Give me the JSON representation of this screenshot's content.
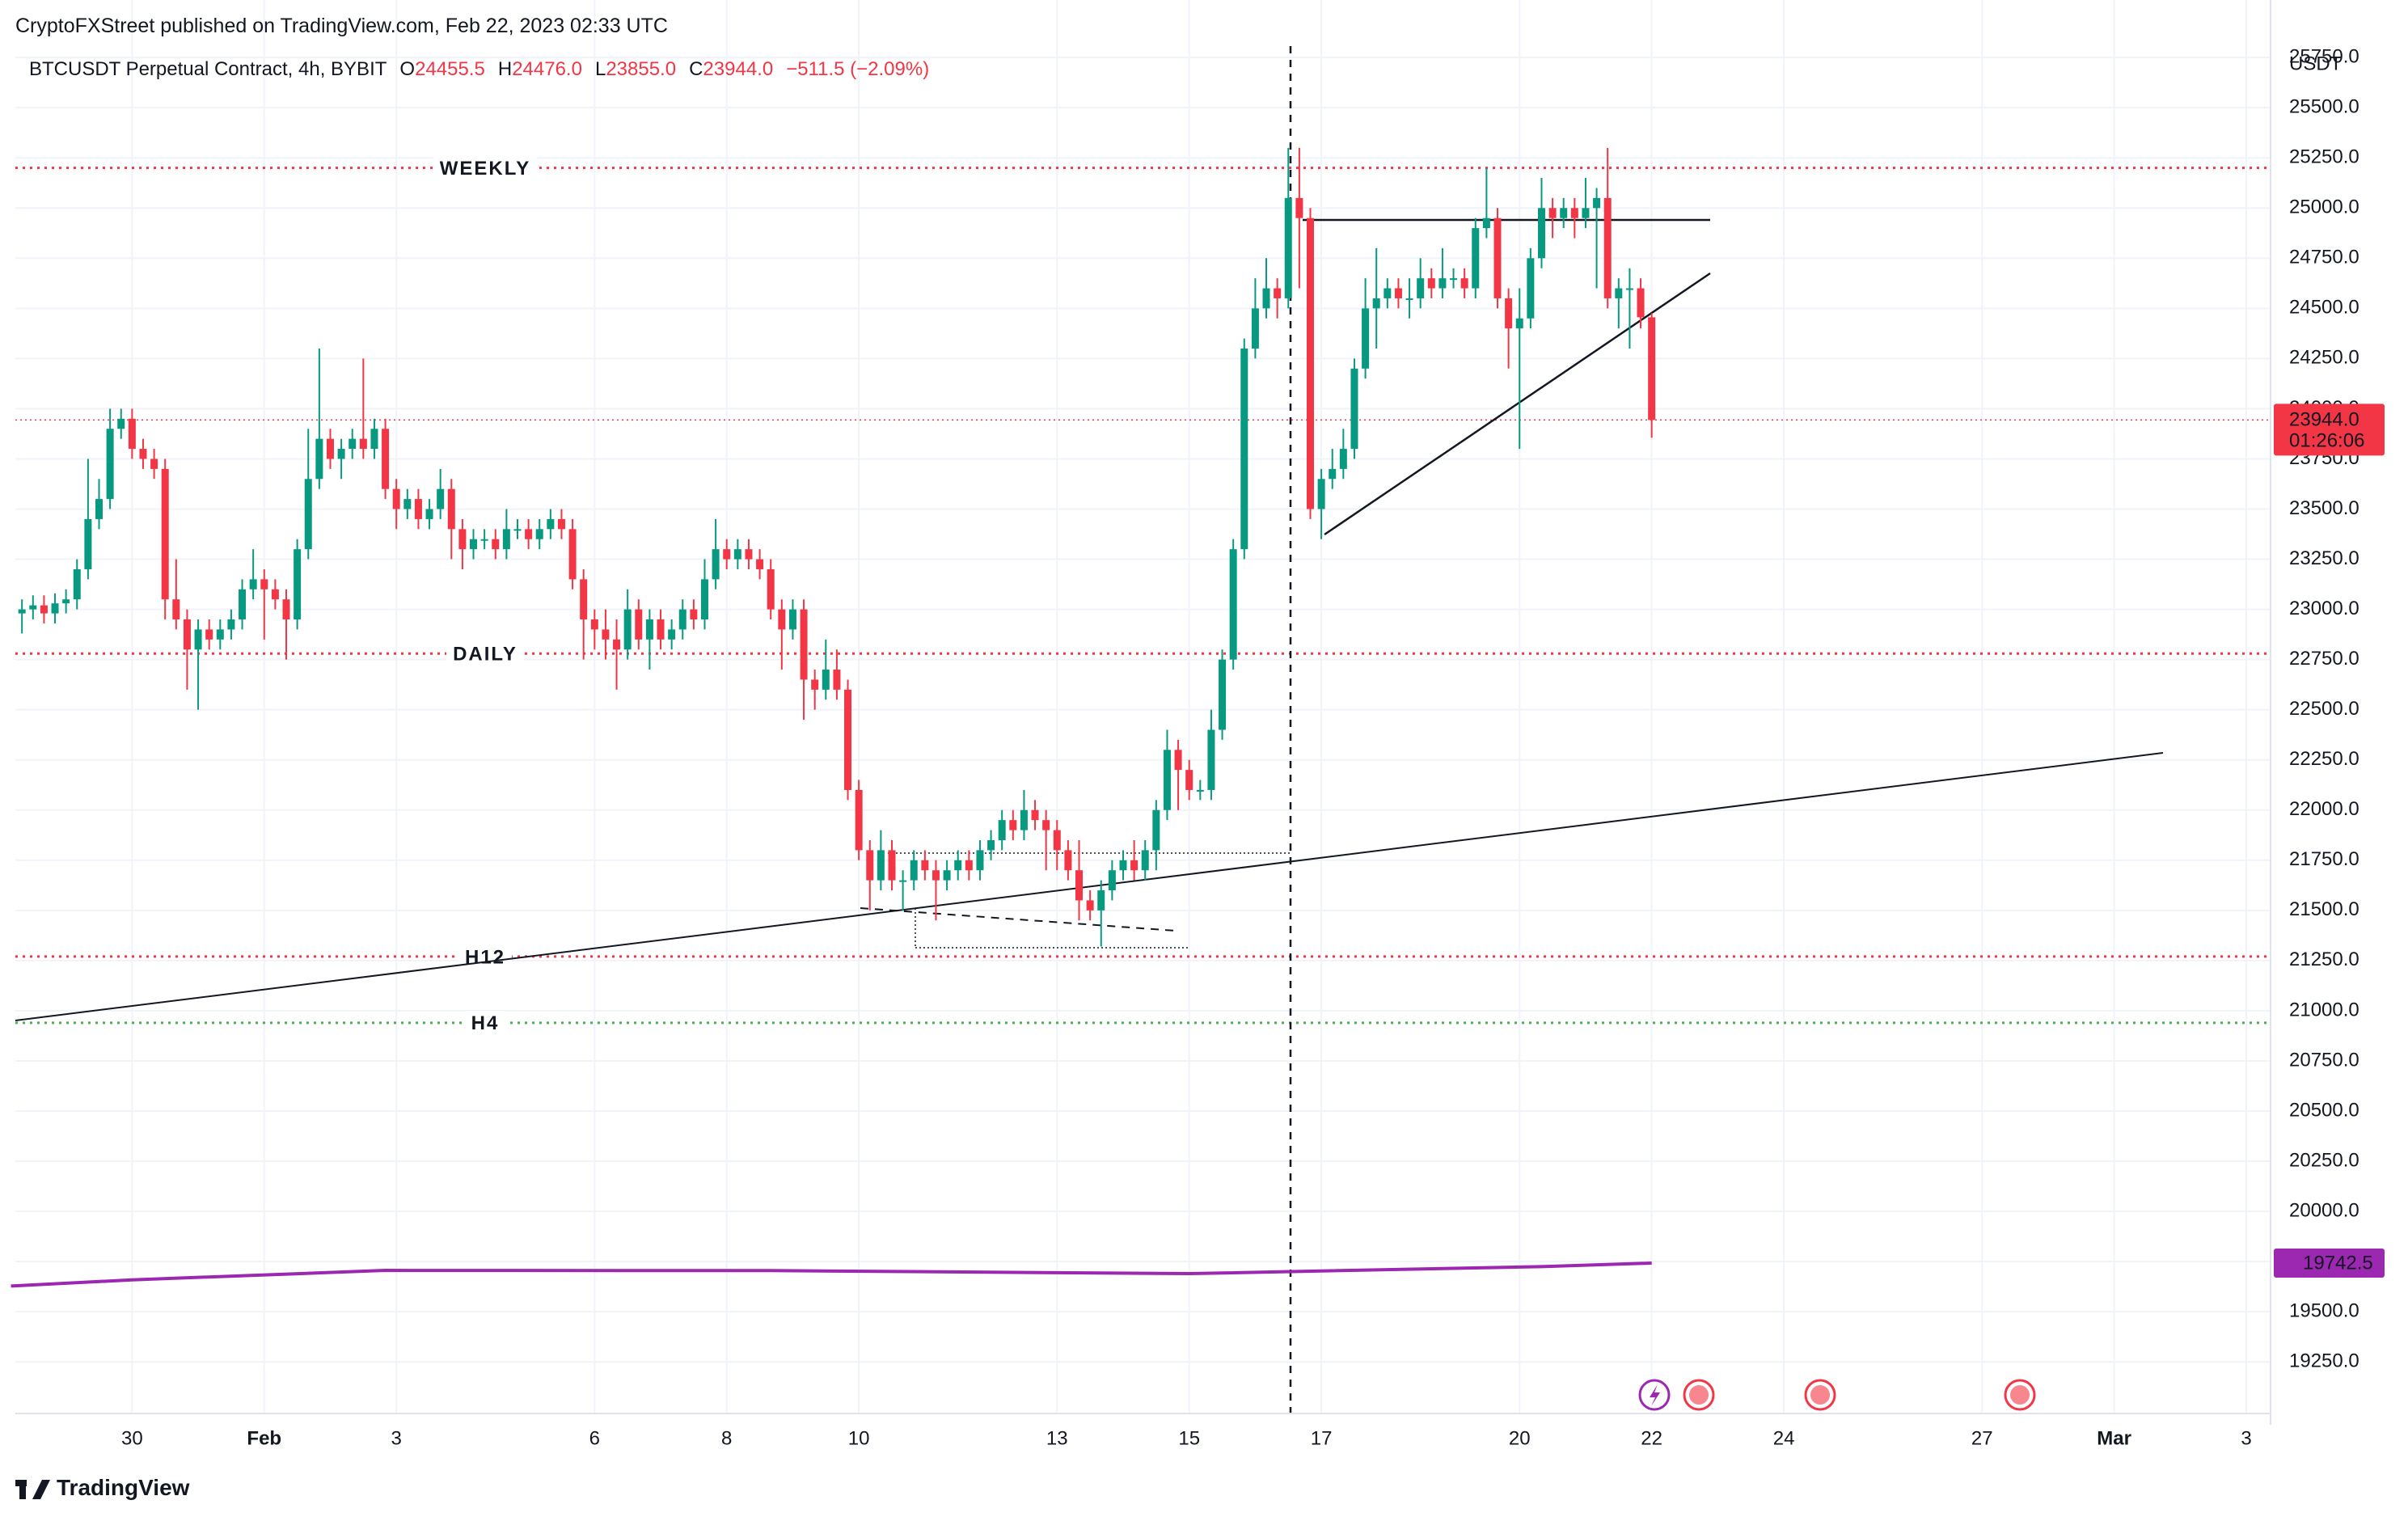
{
  "chart_data": {
    "type": "candlestick",
    "publisher": "CryptoFXStreet published on TradingView.com, Feb 22, 2023 02:33 UTC",
    "symbol": "BTCUSDT Perpetual Contract, 4h, BYBIT",
    "header_fields": [
      {
        "key": "O",
        "value": "24455.5"
      },
      {
        "key": "H",
        "value": "24476.0"
      },
      {
        "key": "L",
        "value": "23855.0"
      },
      {
        "key": "C",
        "value": "23944.0"
      }
    ],
    "change": "−511.5 (−2.09%)",
    "y_unit": "USDT",
    "brand": "TradingView",
    "up_color": "#089981",
    "down_color": "#f23645",
    "open": [
      22980,
      23000,
      23020,
      22980,
      23030,
      23050,
      23200,
      23450,
      23550,
      23900,
      23950,
      23800,
      23750,
      23700,
      23050,
      22950,
      22800,
      22900,
      22850,
      22900,
      22950,
      23100,
      23150,
      23100,
      23050,
      22950,
      23300,
      23650,
      23850,
      23750,
      23800,
      23850,
      23800,
      23900,
      23600,
      23500,
      23550,
      23450,
      23500,
      23600,
      23400,
      23300,
      23350,
      23350,
      23300,
      23400,
      23400,
      23350,
      23400,
      23450,
      23400,
      23150,
      22950,
      22900,
      22850,
      22800,
      23000,
      22850,
      22950,
      22850,
      22900,
      23000,
      22950,
      23150,
      23300,
      23250,
      23300,
      23250,
      23200,
      23000,
      22900,
      23000,
      22650,
      22600,
      22700,
      22600,
      22100,
      21800,
      21650,
      21800,
      21650,
      21650,
      21750,
      21700,
      21650,
      21700,
      21750,
      21700,
      21800,
      21850,
      21950,
      21900,
      22000,
      21950,
      21900,
      21800,
      21700,
      21550,
      21500,
      21600,
      21700,
      21750,
      21700,
      21800,
      22000,
      22300,
      22200,
      22100,
      22100,
      22400,
      22750,
      23300,
      24300,
      24500,
      24600,
      24550,
      25050,
      24950,
      23500,
      23650,
      23700,
      23800,
      24200,
      24500,
      24550,
      24600,
      24550,
      24550,
      24650,
      24600,
      24650,
      24650,
      24600,
      24900,
      24950,
      24550,
      24400,
      24450,
      24750,
      25000,
      24950,
      25000,
      24950,
      25000,
      25050,
      24550,
      24600,
      24600,
      24455.5
    ],
    "high": [
      23050,
      23070,
      23070,
      23080,
      23100,
      23250,
      23750,
      23650,
      24000,
      24000,
      24000,
      23850,
      23800,
      23750,
      23250,
      23000,
      22950,
      22950,
      22950,
      23000,
      23150,
      23300,
      23200,
      23150,
      23100,
      23350,
      23900,
      24300,
      23900,
      23850,
      23900,
      24250,
      23950,
      23950,
      23650,
      23600,
      23600,
      23550,
      23700,
      23650,
      23450,
      23400,
      23400,
      23400,
      23500,
      23450,
      23450,
      23450,
      23500,
      23500,
      23450,
      23200,
      23000,
      23000,
      22950,
      23100,
      23050,
      23000,
      23000,
      22950,
      23050,
      23050,
      23250,
      23450,
      23350,
      23350,
      23350,
      23300,
      23250,
      23050,
      23050,
      23050,
      22700,
      22850,
      22800,
      22650,
      22150,
      21850,
      21900,
      21850,
      21700,
      21800,
      21800,
      21750,
      21750,
      21800,
      21800,
      21850,
      21900,
      22000,
      22000,
      22100,
      22050,
      22000,
      21950,
      21850,
      21850,
      21600,
      21650,
      21750,
      21800,
      21850,
      21850,
      22050,
      22400,
      22350,
      22250,
      22150,
      22500,
      22800,
      23350,
      24350,
      24650,
      24750,
      24650,
      25300,
      25300,
      25000,
      23700,
      23800,
      23900,
      24250,
      24650,
      24800,
      24650,
      24650,
      24650,
      24750,
      24700,
      24800,
      24700,
      24700,
      24950,
      25200,
      25000,
      24600,
      24600,
      24800,
      25150,
      25050,
      25050,
      25050,
      25150,
      25100,
      25300,
      24650,
      24700,
      24650,
      24476
    ],
    "low": [
      22880,
      22950,
      22930,
      22930,
      22980,
      23000,
      23150,
      23400,
      23500,
      23850,
      23750,
      23700,
      23650,
      22950,
      22900,
      22600,
      22500,
      22800,
      22800,
      22850,
      22900,
      23050,
      22850,
      23000,
      22750,
      22900,
      23250,
      23600,
      23700,
      23650,
      23750,
      23750,
      23750,
      23550,
      23400,
      23450,
      23400,
      23400,
      23450,
      23250,
      23200,
      23250,
      23300,
      23250,
      23250,
      23350,
      23300,
      23300,
      23350,
      23350,
      23100,
      22750,
      22800,
      22750,
      22600,
      22750,
      22800,
      22700,
      22800,
      22800,
      22850,
      22900,
      22900,
      23100,
      23200,
      23200,
      23200,
      23150,
      22950,
      22700,
      22850,
      22450,
      22500,
      22550,
      22550,
      22050,
      21750,
      21500,
      21600,
      21600,
      21500,
      21600,
      21650,
      21450,
      21600,
      21650,
      21650,
      21650,
      21750,
      21800,
      21850,
      21850,
      21900,
      21700,
      21700,
      21650,
      21450,
      21450,
      21320,
      21550,
      21650,
      21650,
      21650,
      21700,
      21950,
      22000,
      22050,
      22050,
      22050,
      22350,
      22700,
      23250,
      24250,
      24450,
      24450,
      24500,
      24600,
      23450,
      23350,
      23600,
      23650,
      23750,
      24150,
      24300,
      24500,
      24500,
      24450,
      24500,
      24550,
      24550,
      24600,
      24550,
      24550,
      24850,
      24500,
      24200,
      23800,
      24400,
      24700,
      24850,
      24900,
      24850,
      24900,
      24600,
      24500,
      24400,
      24300,
      24400,
      23855
    ],
    "close": [
      23000,
      23020,
      22980,
      23030,
      23050,
      23200,
      23450,
      23550,
      23900,
      23950,
      23800,
      23750,
      23700,
      23050,
      22950,
      22800,
      22900,
      22850,
      22900,
      22950,
      23100,
      23150,
      23100,
      23050,
      22950,
      23300,
      23650,
      23850,
      23750,
      23800,
      23850,
      23800,
      23900,
      23600,
      23500,
      23550,
      23450,
      23500,
      23600,
      23400,
      23300,
      23350,
      23350,
      23300,
      23400,
      23400,
      23350,
      23400,
      23450,
      23400,
      23150,
      22950,
      22900,
      22850,
      22800,
      23000,
      22850,
      22950,
      22850,
      22900,
      23000,
      22950,
      23150,
      23300,
      23250,
      23300,
      23250,
      23200,
      23000,
      22900,
      23000,
      22650,
      22600,
      22700,
      22600,
      22100,
      21800,
      21650,
      21800,
      21650,
      21650,
      21750,
      21700,
      21650,
      21700,
      21750,
      21700,
      21800,
      21850,
      21950,
      21900,
      22000,
      21950,
      21900,
      21800,
      21700,
      21550,
      21500,
      21600,
      21700,
      21750,
      21700,
      21800,
      22000,
      22300,
      22200,
      22100,
      22100,
      22400,
      22750,
      23300,
      24300,
      24500,
      24600,
      24550,
      25050,
      24950,
      23500,
      23650,
      23700,
      23800,
      24200,
      24500,
      24550,
      24600,
      24550,
      24550,
      24650,
      24600,
      24650,
      24650,
      24600,
      24900,
      24950,
      24550,
      24400,
      24450,
      24750,
      25000,
      24950,
      25000,
      24950,
      25000,
      25050,
      24550,
      24600,
      24600,
      24455.5,
      23944
    ],
    "price_tag": {
      "label": "23944.0",
      "countdown": "01:26:06",
      "color": "#f23645"
    },
    "ma": {
      "color": "#9c27b0",
      "x": [
        -1,
        10,
        33,
        68,
        106,
        138,
        148
      ],
      "values": [
        19628,
        19659,
        19706,
        19705,
        19690,
        19725,
        19742.5
      ]
    },
    "levels": [
      {
        "name": "WEEKLY",
        "value": 25200,
        "color": "#f23645"
      },
      {
        "name": "DAILY",
        "value": 22780,
        "color": "#f23645"
      },
      {
        "name": "H12",
        "value": 21270,
        "color": "#f23645"
      },
      {
        "name": "H4",
        "value": 20940,
        "color": "#4caf50"
      }
    ],
    "xlim": [
      -0.6,
      204.2
    ],
    "xticks": [
      {
        "value": 10,
        "label": "30"
      },
      {
        "value": 22,
        "label": "Feb"
      },
      {
        "value": 34,
        "label": "3"
      },
      {
        "value": 52,
        "label": "6"
      },
      {
        "value": 64,
        "label": "8"
      },
      {
        "value": 76,
        "label": "10"
      },
      {
        "value": 94,
        "label": "13"
      },
      {
        "value": 106,
        "label": "15"
      },
      {
        "value": 118,
        "label": "17"
      },
      {
        "value": 136,
        "label": "20"
      },
      {
        "value": 148,
        "label": "22"
      },
      {
        "value": 160,
        "label": "24"
      },
      {
        "value": 178,
        "label": "27"
      },
      {
        "value": 190,
        "label": "Mar"
      },
      {
        "value": 202,
        "label": "3"
      }
    ],
    "ylim": [
      18993,
      25807
    ],
    "yticks": [
      {
        "value": 19250,
        "label": "19250.0"
      },
      {
        "value": 19500,
        "label": "19500.0"
      },
      {
        "value": 19750,
        "label": "19750.0"
      },
      {
        "value": 20000,
        "label": "20000.0"
      },
      {
        "value": 20250,
        "label": "20250.0"
      },
      {
        "value": 20500,
        "label": "20500.0"
      },
      {
        "value": 20750,
        "label": "20750.0"
      },
      {
        "value": 21000,
        "label": "21000.0"
      },
      {
        "value": 21250,
        "label": "21250.0"
      },
      {
        "value": 21500,
        "label": "21500.0"
      },
      {
        "value": 21750,
        "label": "21750.0"
      },
      {
        "value": 22000,
        "label": "22000.0"
      },
      {
        "value": 22250,
        "label": "22250.0"
      },
      {
        "value": 22500,
        "label": "22500.0"
      },
      {
        "value": 22750,
        "label": "22750.0"
      },
      {
        "value": 23000,
        "label": "23000.0"
      },
      {
        "value": 23250,
        "label": "23250.0"
      },
      {
        "value": 23500,
        "label": "23500.0"
      },
      {
        "value": 23750,
        "label": "23750.0"
      },
      {
        "value": 24000,
        "label": "24000.0"
      },
      {
        "value": 24250,
        "label": "24250.0"
      },
      {
        "value": 24500,
        "label": "24500.0"
      },
      {
        "value": 24750,
        "label": "24750.0"
      },
      {
        "value": 25000,
        "label": "25000.0"
      },
      {
        "value": 25250,
        "label": "25250.0"
      },
      {
        "value": 25500,
        "label": "25500.0"
      },
      {
        "value": 25750,
        "label": "25750.0"
      }
    ],
    "grid": true
  }
}
